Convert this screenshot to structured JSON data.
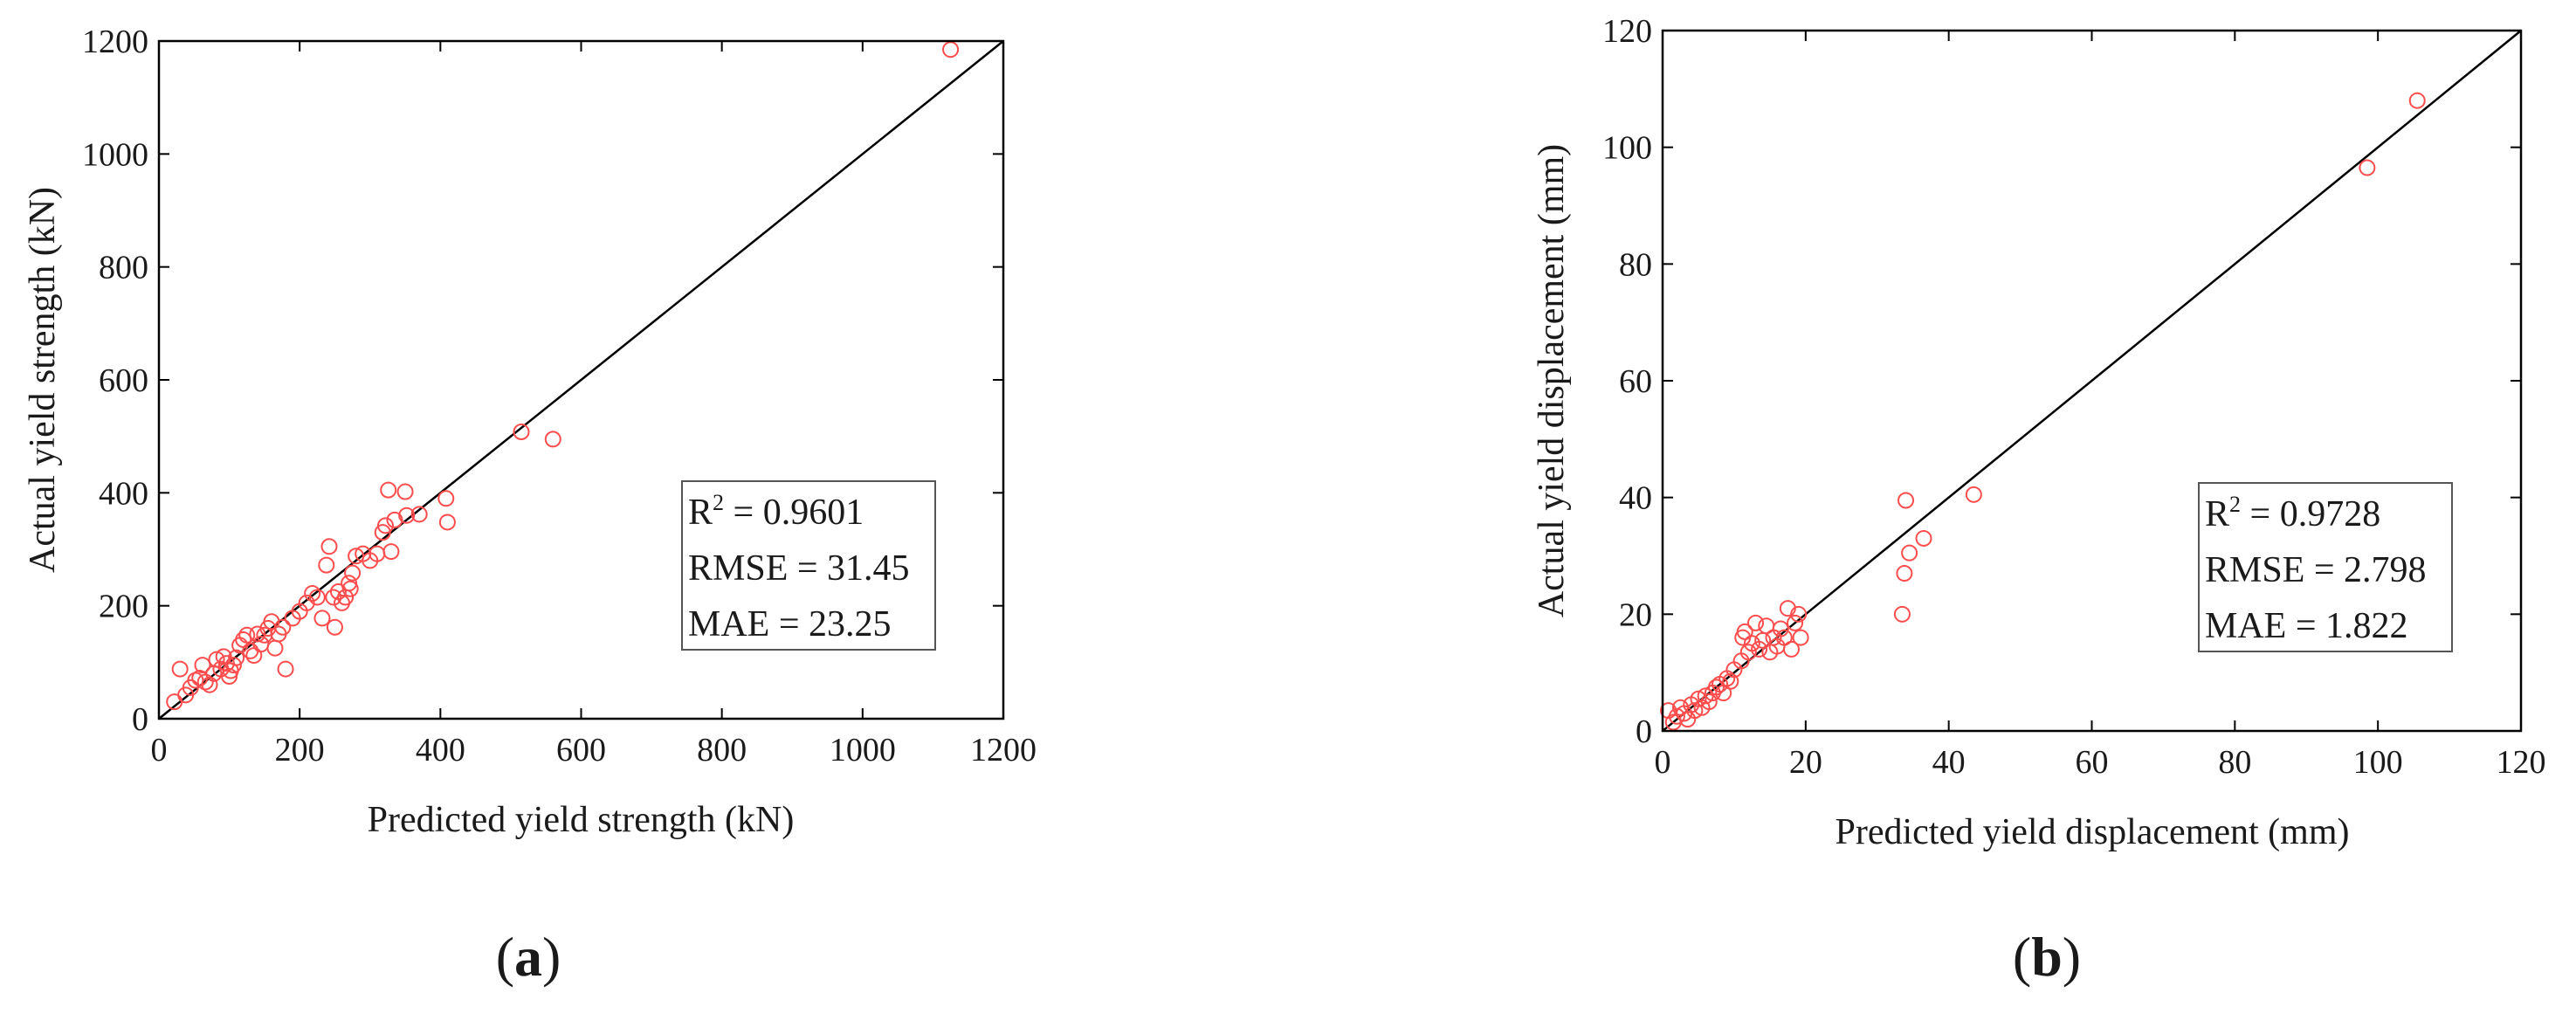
{
  "panel_labels": [
    {
      "open": "(",
      "letter": "a",
      "close": ")"
    },
    {
      "open": "(",
      "letter": "b",
      "close": ")"
    }
  ],
  "colors": {
    "points": "#ff4d4d",
    "line": "#000000",
    "axes": "#000000",
    "text": "#1a1a1a"
  },
  "chart_data": [
    {
      "type": "scatter",
      "title": "",
      "xlabel": "Predicted yield strength (kN)",
      "ylabel": "Actual yield strength (kN)",
      "xlim": [
        0,
        1200
      ],
      "ylim": [
        0,
        1200
      ],
      "xticks": [
        0,
        200,
        400,
        600,
        800,
        1000,
        1200
      ],
      "yticks": [
        0,
        200,
        400,
        600,
        800,
        1000,
        1200
      ],
      "grid": false,
      "reference_line": "y = x",
      "stats": {
        "r2_label": "R",
        "r2_sup": "2",
        "r2_value": " = 0.9601",
        "rmse": "RMSE = 31.45",
        "mae": "MAE = 23.25"
      },
      "stats_box_position": "bottom-right",
      "marker": "open circle",
      "points": [
        [
          22,
          30
        ],
        [
          30,
          88
        ],
        [
          38,
          42
        ],
        [
          45,
          55
        ],
        [
          52,
          68
        ],
        [
          58,
          72
        ],
        [
          62,
          95
        ],
        [
          66,
          65
        ],
        [
          72,
          60
        ],
        [
          78,
          80
        ],
        [
          82,
          105
        ],
        [
          88,
          88
        ],
        [
          92,
          110
        ],
        [
          96,
          98
        ],
        [
          100,
          75
        ],
        [
          102,
          85
        ],
        [
          106,
          95
        ],
        [
          110,
          108
        ],
        [
          115,
          130
        ],
        [
          120,
          140
        ],
        [
          125,
          148
        ],
        [
          130,
          120
        ],
        [
          135,
          112
        ],
        [
          140,
          150
        ],
        [
          145,
          132
        ],
        [
          150,
          148
        ],
        [
          155,
          160
        ],
        [
          160,
          172
        ],
        [
          165,
          125
        ],
        [
          170,
          150
        ],
        [
          176,
          162
        ],
        [
          180,
          88
        ],
        [
          190,
          178
        ],
        [
          200,
          190
        ],
        [
          210,
          205
        ],
        [
          218,
          222
        ],
        [
          225,
          215
        ],
        [
          232,
          178
        ],
        [
          238,
          272
        ],
        [
          242,
          305
        ],
        [
          248,
          215
        ],
        [
          250,
          162
        ],
        [
          255,
          225
        ],
        [
          260,
          205
        ],
        [
          265,
          215
        ],
        [
          270,
          240
        ],
        [
          272,
          230
        ],
        [
          275,
          258
        ],
        [
          280,
          288
        ],
        [
          290,
          292
        ],
        [
          300,
          280
        ],
        [
          310,
          292
        ],
        [
          318,
          330
        ],
        [
          322,
          342
        ],
        [
          326,
          405
        ],
        [
          330,
          296
        ],
        [
          335,
          352
        ],
        [
          350,
          402
        ],
        [
          352,
          360
        ],
        [
          370,
          362
        ],
        [
          408,
          390
        ],
        [
          410,
          348
        ],
        [
          515,
          508
        ],
        [
          560,
          495
        ],
        [
          1125,
          1185
        ]
      ]
    },
    {
      "type": "scatter",
      "title": "",
      "xlabel": "Predicted yield displacement (mm)",
      "ylabel": "Actual yield displacement (mm)",
      "xlim": [
        0,
        120
      ],
      "ylim": [
        0,
        120
      ],
      "xticks": [
        0,
        20,
        40,
        60,
        80,
        100,
        120
      ],
      "yticks": [
        0,
        20,
        40,
        60,
        80,
        100,
        120
      ],
      "grid": false,
      "reference_line": "y = x",
      "stats": {
        "r2_label": "R",
        "r2_sup": "2",
        "r2_value": " = 0.9728",
        "rmse": "RMSE = 2.798",
        "mae": "MAE = 1.822"
      },
      "stats_box_position": "bottom-right",
      "marker": "open circle",
      "points": [
        [
          0.8,
          3.5
        ],
        [
          1.5,
          1.5
        ],
        [
          2.0,
          2.5
        ],
        [
          2.5,
          4.0
        ],
        [
          3.0,
          3.0
        ],
        [
          3.5,
          2.0
        ],
        [
          4.0,
          4.5
        ],
        [
          4.5,
          3.5
        ],
        [
          5.0,
          5.5
        ],
        [
          5.5,
          4.0
        ],
        [
          6.0,
          6.0
        ],
        [
          6.5,
          5.0
        ],
        [
          7.0,
          6.5
        ],
        [
          7.5,
          7.5
        ],
        [
          8.0,
          8.0
        ],
        [
          8.5,
          6.5
        ],
        [
          9.0,
          9.0
        ],
        [
          9.5,
          8.5
        ],
        [
          10.0,
          10.5
        ],
        [
          11.0,
          12.0
        ],
        [
          11.2,
          16.0
        ],
        [
          11.5,
          17.0
        ],
        [
          12.0,
          13.5
        ],
        [
          12.5,
          15.0
        ],
        [
          13.0,
          18.5
        ],
        [
          13.5,
          14.0
        ],
        [
          14.0,
          15.5
        ],
        [
          14.5,
          18.0
        ],
        [
          15.0,
          13.5
        ],
        [
          15.5,
          16.0
        ],
        [
          16.0,
          14.5
        ],
        [
          16.5,
          17.5
        ],
        [
          17.0,
          16.0
        ],
        [
          17.5,
          21.0
        ],
        [
          18.0,
          14.0
        ],
        [
          18.5,
          18.5
        ],
        [
          19.0,
          20.0
        ],
        [
          19.3,
          16.0
        ],
        [
          33.5,
          20.0
        ],
        [
          33.8,
          27.0
        ],
        [
          34.0,
          39.5
        ],
        [
          34.5,
          30.5
        ],
        [
          36.5,
          33.0
        ],
        [
          43.5,
          40.5
        ],
        [
          98.5,
          96.5
        ],
        [
          105.5,
          108.0
        ]
      ]
    }
  ]
}
